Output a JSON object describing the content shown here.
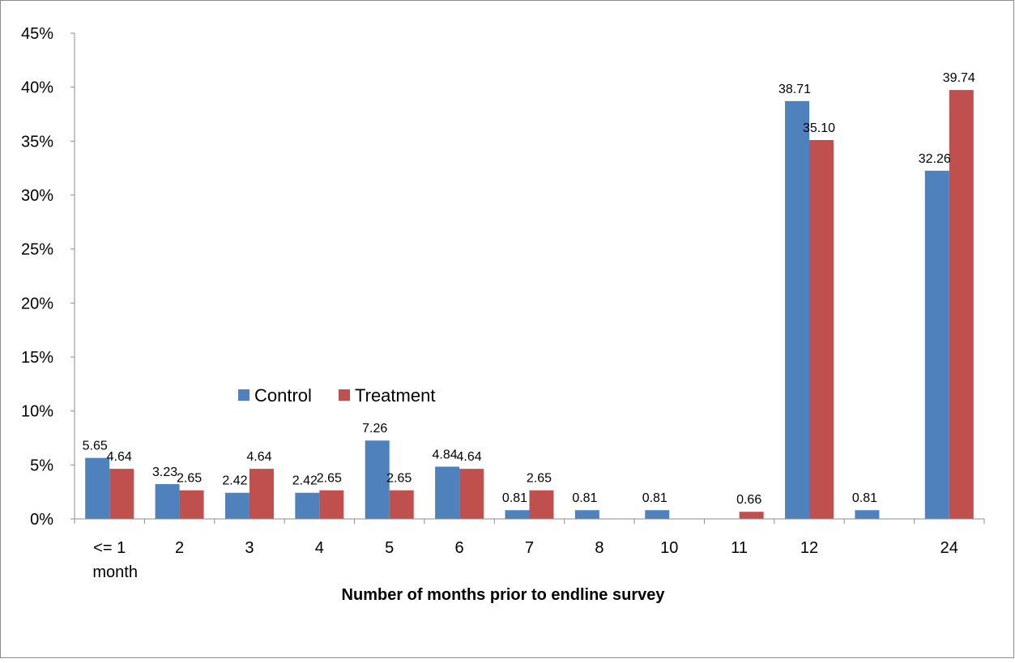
{
  "chart_data": {
    "type": "bar",
    "title": "",
    "xlabel": "Number of months prior to endline survey",
    "ylabel": "",
    "ylim": [
      0,
      45
    ],
    "yticks": [
      "0%",
      "5%",
      "10%",
      "15%",
      "20%",
      "25%",
      "30%",
      "35%",
      "40%",
      "45%"
    ],
    "categories": [
      "<= 1 month",
      "2",
      "3",
      "4",
      "5",
      "6",
      "7",
      "8",
      "10",
      "11",
      "12",
      "",
      "24"
    ],
    "series": [
      {
        "name": "Control",
        "color": "#4f81bd",
        "values": [
          5.65,
          3.23,
          2.42,
          2.42,
          7.26,
          4.84,
          0.81,
          0.81,
          0.81,
          null,
          38.71,
          0.81,
          32.26
        ],
        "labels": [
          "5.65",
          "3.23",
          "2.42",
          "2.42",
          "7.26",
          "4.84",
          "0.81",
          "0.81",
          "0.81",
          "",
          "38.71",
          "0.81",
          "32.26"
        ]
      },
      {
        "name": "Treatment",
        "color": "#c0504d",
        "values": [
          4.64,
          2.65,
          4.64,
          2.65,
          2.65,
          4.64,
          2.65,
          null,
          null,
          0.66,
          35.1,
          null,
          39.74
        ],
        "labels": [
          "4.64",
          "2.65",
          "4.64",
          "2.65",
          "2.65",
          "4.64",
          "2.65",
          "",
          "",
          "0.66",
          "35.10",
          "",
          "39.74"
        ]
      }
    ],
    "legend": "inside-left",
    "grid": false
  }
}
